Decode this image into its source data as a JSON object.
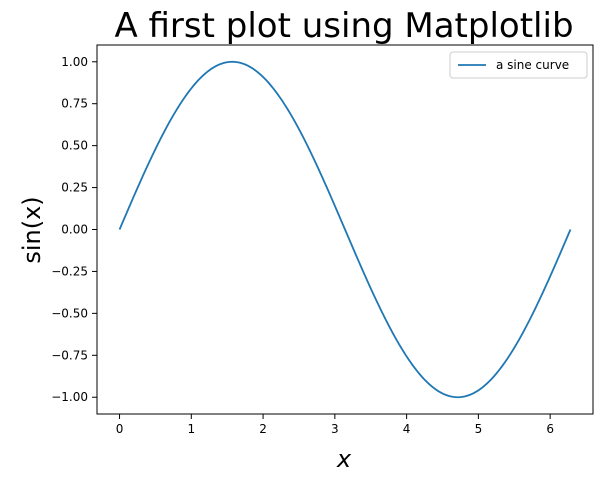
{
  "chart_data": {
    "type": "line",
    "title": "A first plot using Matplotlib",
    "xlabel": "x",
    "ylabel": "sin(x)",
    "xlim": [
      -0.314,
      6.597
    ],
    "ylim": [
      -1.1,
      1.1
    ],
    "xticks": [
      0,
      1,
      2,
      3,
      4,
      5,
      6
    ],
    "xtick_labels": [
      "0",
      "1",
      "2",
      "3",
      "4",
      "5",
      "6"
    ],
    "yticks": [
      1.0,
      0.75,
      0.5,
      0.25,
      0.0,
      -0.25,
      -0.5,
      -0.75,
      -1.0
    ],
    "ytick_labels": [
      "1.00",
      "0.75",
      "0.50",
      "0.25",
      "0.00",
      "−0.25",
      "−0.50",
      "−0.75",
      "−1.00"
    ],
    "grid": false,
    "legend_position": "top-right",
    "series": [
      {
        "name": "a sine curve",
        "color": "#1f77b4",
        "x_range": [
          0,
          6.2832
        ],
        "function": "sin(x)"
      }
    ]
  }
}
